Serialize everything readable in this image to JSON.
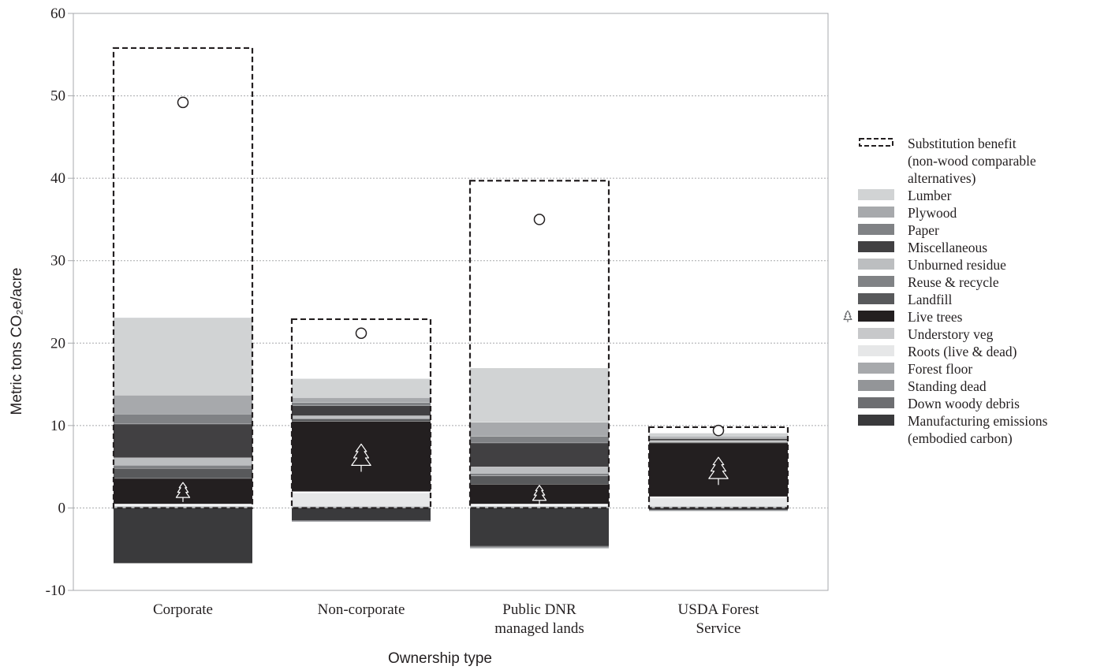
{
  "chart_data": {
    "type": "bar",
    "stacked": true,
    "title": "",
    "xlabel": "Ownership type",
    "ylabel": "Metric tons CO₂e/acre",
    "ylim": [
      -10,
      60
    ],
    "yticks": [
      "-10",
      "0",
      "10",
      "20",
      "30",
      "40",
      "50",
      "60"
    ],
    "grid": true,
    "legend_position": "right",
    "categories": [
      [
        "Corporate"
      ],
      [
        "Non-corporate"
      ],
      [
        "Public DNR",
        "managed lands"
      ],
      [
        "USDA Forest",
        "Service"
      ]
    ],
    "substitution_benefit": {
      "name": [
        "Substitution benefit",
        "(non-wood comparable",
        "alternatives)"
      ],
      "values": [
        55.8,
        22.9,
        39.7,
        9.8
      ]
    },
    "circle_markers": [
      49.2,
      21.2,
      35.0,
      9.4
    ],
    "positive_series": [
      {
        "name": "Live trees",
        "color": "#231f20",
        "values": [
          3.2,
          8.6,
          2.5,
          6.6
        ]
      },
      {
        "name": "Landfill",
        "color": "#58595b",
        "values": [
          1.2,
          0.3,
          1.0,
          0.1
        ]
      },
      {
        "name": "Reuse & recycle",
        "color": "#808285",
        "values": [
          0.4,
          0.1,
          0.3,
          0.05
        ]
      },
      {
        "name": "Unburned residue",
        "color": "#bcbec0",
        "values": [
          0.9,
          0.3,
          0.8,
          0.15
        ]
      },
      {
        "name": "Miscellaneous",
        "color": "#414042",
        "values": [
          4.1,
          1.2,
          2.9,
          0.2
        ]
      },
      {
        "name": "Paper",
        "color": "#808285",
        "values": [
          1.2,
          0.4,
          0.8,
          0.1
        ]
      },
      {
        "name": "Plywood",
        "color": "#a7a9ac",
        "values": [
          2.3,
          0.6,
          1.7,
          0.2
        ]
      },
      {
        "name": "Lumber",
        "color": "#d1d3d4",
        "values": [
          9.4,
          2.3,
          6.6,
          0.4
        ]
      }
    ],
    "ground_series": [
      {
        "name": "Roots (live & dead)",
        "values": [
          0.4,
          1.9,
          0.4,
          1.3
        ]
      }
    ],
    "negative_series": [
      {
        "name": "Manufacturing emissions",
        "color": "#3a3a3c",
        "values": [
          -6.7,
          -1.5,
          -4.6,
          -0.2
        ]
      },
      {
        "name": "Down woody debris",
        "color": "#6d6e71",
        "values": [
          0,
          -0.05,
          -0.1,
          -0.05
        ]
      },
      {
        "name": "Standing dead",
        "color": "#939598",
        "values": [
          0,
          -0.05,
          -0.1,
          -0.05
        ]
      },
      {
        "name": "Forest floor",
        "color": "#a7a9ac",
        "values": [
          0,
          -0.05,
          -0.1,
          -0.05
        ]
      }
    ],
    "legend": [
      {
        "label": [
          "Substitution benefit",
          "(non-wood comparable",
          "alternatives)"
        ],
        "swatch": "dashed"
      },
      {
        "label": [
          "Lumber"
        ],
        "color": "#d1d3d4"
      },
      {
        "label": [
          "Plywood"
        ],
        "color": "#a7a9ac"
      },
      {
        "label": [
          "Paper"
        ],
        "color": "#808285"
      },
      {
        "label": [
          "Miscellaneous"
        ],
        "color": "#414042"
      },
      {
        "label": [
          "Unburned residue"
        ],
        "color": "#bcbec0"
      },
      {
        "label": [
          "Reuse & recycle"
        ],
        "color": "#808285"
      },
      {
        "label": [
          "Landfill"
        ],
        "color": "#58595b"
      },
      {
        "label": [
          "Live trees"
        ],
        "color": "#231f20",
        "tree_icon": true
      },
      {
        "label": [
          "Understory veg"
        ],
        "color": "#c7c8ca"
      },
      {
        "label": [
          "Roots (live & dead)"
        ],
        "color": "#e6e7e8"
      },
      {
        "label": [
          "Forest floor"
        ],
        "color": "#a7a9ac"
      },
      {
        "label": [
          "Standing dead"
        ],
        "color": "#939598"
      },
      {
        "label": [
          "Down woody debris"
        ],
        "color": "#6d6e71"
      },
      {
        "label": [
          "Manufacturing emissions",
          "(embodied carbon)"
        ],
        "color": "#3a3a3c"
      }
    ]
  },
  "colors": {
    "axis": "#a7a9ac",
    "grid": "#a7a9ac",
    "text": "#231f20",
    "roots": "#e6e7e8",
    "understory": "#c7c8ca",
    "separator": "#ffffff"
  }
}
